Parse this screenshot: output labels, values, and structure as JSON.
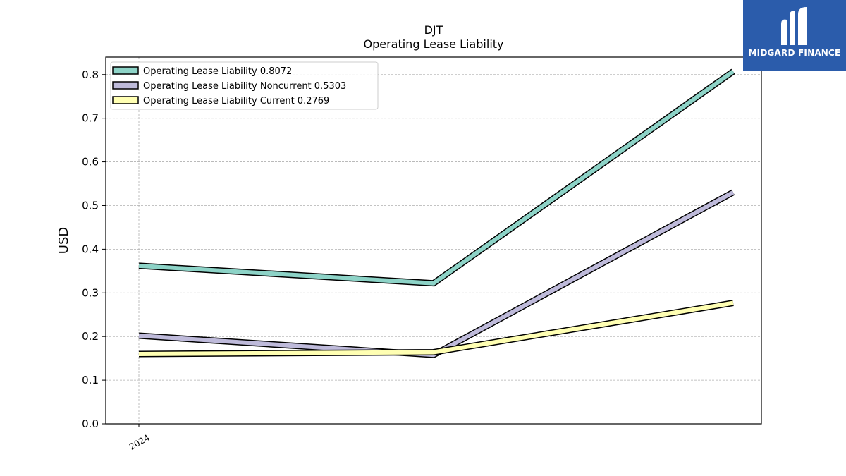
{
  "logo": {
    "text": "MIDGARD FINANCE",
    "color": "#2b5cab"
  },
  "chart_data": {
    "type": "line",
    "title": "DJT",
    "subtitle": "Operating Lease Liability",
    "ylabel": "USD",
    "xlabel": "",
    "ylim": [
      0,
      0.84
    ],
    "yticks": [
      0.0,
      0.1,
      0.2,
      0.3,
      0.4,
      0.5,
      0.6,
      0.7,
      0.8
    ],
    "x": [
      0,
      1,
      2
    ],
    "xticks": [
      {
        "x": 0,
        "label": "2024"
      }
    ],
    "grid": true,
    "legend_position": "top-left",
    "series": [
      {
        "name": "Operating Lease Liability",
        "legend_value": "0.8072",
        "color": "#8dd3c7",
        "values": [
          0.362,
          0.322,
          0.8072
        ]
      },
      {
        "name": "Operating Lease Liability Noncurrent",
        "legend_value": "0.5303",
        "color": "#bebada",
        "values": [
          0.202,
          0.158,
          0.5303
        ]
      },
      {
        "name": "Operating Lease Liability Current",
        "legend_value": "0.2769",
        "color": "#ffffb3",
        "values": [
          0.16,
          0.164,
          0.2769
        ]
      }
    ]
  }
}
